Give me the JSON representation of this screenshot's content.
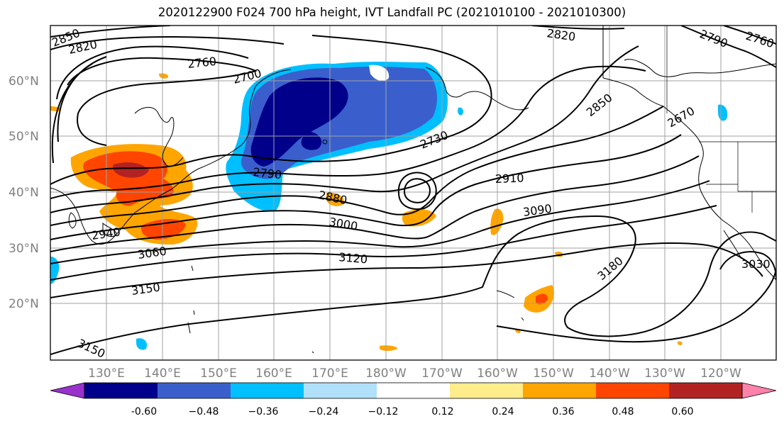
{
  "title": "2020122900 F024 700 hPa height, IVT Landfall PC (2021010100 - 2021010300)",
  "lat_labels": [
    "60°N",
    "50°N",
    "40°N",
    "30°N",
    "20°N"
  ],
  "lon_labels": [
    "130°E",
    "140°E",
    "150°E",
    "160°E",
    "170°E",
    "180°W",
    "170°W",
    "160°W",
    "150°W",
    "140°W",
    "130°W",
    "120°W"
  ],
  "contour_labels": [
    "2850",
    "2820",
    "2760",
    "2700",
    "2820",
    "2790",
    "2760",
    "2850",
    "2670",
    "2730",
    "2790",
    "2880",
    "2910",
    "3090",
    "3000",
    "2940",
    "3060",
    "3120",
    "3150",
    "3180",
    "3030",
    "3150"
  ],
  "colorbar": {
    "ticks": [
      "-0.60",
      "−0.48",
      "−0.36",
      "−0.24",
      "−0.12",
      "0.12",
      "0.24",
      "0.36",
      "0.48",
      "0.60"
    ],
    "colors": [
      "#9932cc",
      "#00008b",
      "#3a5fcd",
      "#00bfff",
      "#b0e0fa",
      "#ffffff",
      "#ffec8b",
      "#ffa500",
      "#ff4500",
      "#b22222",
      "#ff82ab"
    ]
  }
}
